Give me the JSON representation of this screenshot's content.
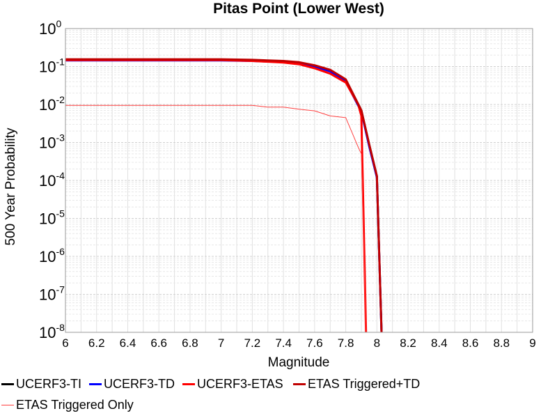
{
  "chart_data": {
    "type": "line",
    "title": "Pitas Point (Lower West)",
    "xlabel": "Magnitude",
    "ylabel": "500 Year Probability",
    "xlim": [
      6,
      9
    ],
    "ylim": [
      1e-08,
      1
    ],
    "yscale": "log",
    "grid": true,
    "xticks": [
      "6",
      "6.2",
      "6.4",
      "6.6",
      "6.8",
      "7",
      "7.2",
      "7.4",
      "7.6",
      "7.8",
      "8",
      "8.2",
      "8.4",
      "8.6",
      "8.8",
      "9"
    ],
    "yticks": [
      {
        "base": "10",
        "exp": "0"
      },
      {
        "base": "10",
        "exp": "-1"
      },
      {
        "base": "10",
        "exp": "-2"
      },
      {
        "base": "10",
        "exp": "-3"
      },
      {
        "base": "10",
        "exp": "-4"
      },
      {
        "base": "10",
        "exp": "-5"
      },
      {
        "base": "10",
        "exp": "-6"
      },
      {
        "base": "10",
        "exp": "-7"
      },
      {
        "base": "10",
        "exp": "-8"
      }
    ],
    "legend_position": "bottom",
    "series": [
      {
        "name": "UCERF3-TI",
        "color": "#000000",
        "width": 3,
        "x": [
          6.0,
          6.5,
          7.0,
          7.2,
          7.4,
          7.5,
          7.6,
          7.7,
          7.8,
          7.9,
          7.95,
          8.0,
          8.03
        ],
        "y": [
          0.15,
          0.15,
          0.15,
          0.145,
          0.135,
          0.128,
          0.105,
          0.08,
          0.045,
          0.007,
          0.0009,
          0.00013,
          1e-08
        ]
      },
      {
        "name": "UCERF3-TD",
        "color": "#0000ff",
        "width": 3,
        "x": [
          6.0,
          6.5,
          7.0,
          7.2,
          7.4,
          7.5,
          7.6,
          7.7,
          7.8,
          7.9,
          7.95,
          8.0,
          8.03
        ],
        "y": [
          0.145,
          0.145,
          0.145,
          0.14,
          0.13,
          0.12,
          0.1,
          0.075,
          0.04,
          0.0065,
          0.0008,
          0.00012,
          1e-08
        ]
      },
      {
        "name": "UCERF3-ETAS",
        "color": "#ff0000",
        "width": 3,
        "x": [
          6.0,
          6.5,
          7.0,
          7.2,
          7.4,
          7.5,
          7.6,
          7.7,
          7.8,
          7.88,
          7.9,
          7.93
        ],
        "y": [
          0.148,
          0.148,
          0.148,
          0.14,
          0.128,
          0.115,
          0.09,
          0.065,
          0.038,
          0.01,
          0.005,
          1e-08
        ]
      },
      {
        "name": "ETAS Triggered+TD",
        "color": "#c00000",
        "width": 3,
        "x": [
          6.0,
          6.5,
          7.0,
          7.2,
          7.4,
          7.5,
          7.6,
          7.7,
          7.8,
          7.9,
          7.95,
          8.0,
          8.03
        ],
        "y": [
          0.155,
          0.155,
          0.155,
          0.15,
          0.14,
          0.13,
          0.108,
          0.082,
          0.046,
          0.007,
          0.0009,
          0.00013,
          1e-08
        ]
      },
      {
        "name": "ETAS Triggered Only",
        "color": "#ff4040",
        "width": 1,
        "x": [
          6.0,
          6.5,
          7.0,
          7.2,
          7.3,
          7.4,
          7.5,
          7.6,
          7.7,
          7.8,
          7.88,
          7.9,
          7.93
        ],
        "y": [
          0.0095,
          0.0095,
          0.0095,
          0.0095,
          0.0085,
          0.0085,
          0.0075,
          0.0068,
          0.005,
          0.0045,
          0.00075,
          0.0005,
          1e-08
        ]
      }
    ]
  }
}
